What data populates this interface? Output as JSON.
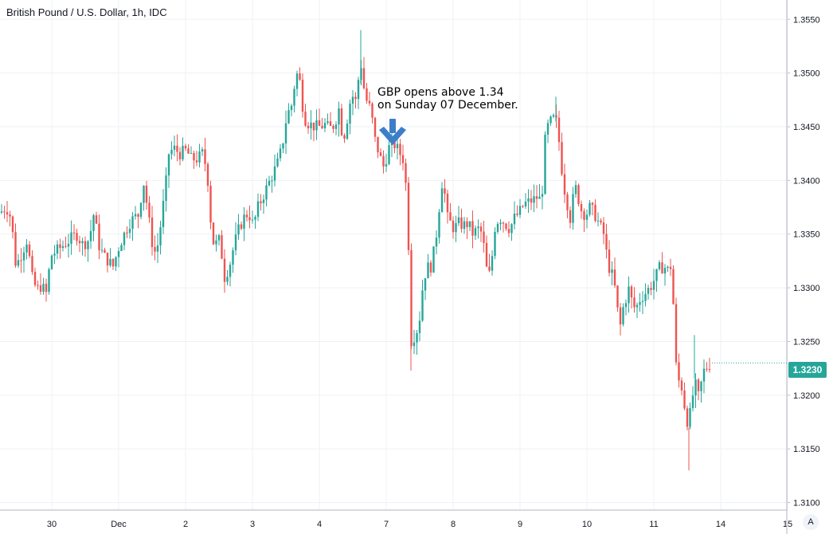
{
  "title": "British Pound / U.S. Dollar, 1h, IDC",
  "annotation": {
    "line1": "GBP opens above 1.34",
    "line2": "on Sunday 07 December.",
    "arrow_icon": "down-arrow-icon",
    "arrow_color": "#3d7ec8"
  },
  "last_price": {
    "label": "1.3230",
    "color": "#26a69a"
  },
  "auto_button": {
    "label": "A"
  },
  "colors": {
    "up": "#26a69a",
    "down": "#ef5350",
    "grid": "#eef1f5",
    "axis_text": "#131722",
    "axis_line": "#b2b5be"
  },
  "chart_data": {
    "type": "candlestick",
    "title": "British Pound / U.S. Dollar, 1h, IDC",
    "xlabel": "",
    "ylabel": "",
    "ylim": [
      1.3093,
      1.3568
    ],
    "grid": true,
    "yticks": [
      "1.3100",
      "1.3150",
      "1.3200",
      "1.3250",
      "1.3300",
      "1.3350",
      "1.3400",
      "1.3450",
      "1.3500",
      "1.3550"
    ],
    "xticks": [
      {
        "label": "30",
        "t": 65
      },
      {
        "label": "Dec",
        "t": 149
      },
      {
        "label": "2",
        "t": 233
      },
      {
        "label": "3",
        "t": 317
      },
      {
        "label": "4",
        "t": 401
      },
      {
        "label": "7",
        "t": 485
      },
      {
        "label": "8",
        "t": 569
      },
      {
        "label": "9",
        "t": 653
      },
      {
        "label": "10",
        "t": 737
      },
      {
        "label": "11",
        "t": 821
      },
      {
        "label": "14",
        "t": 905
      },
      {
        "label": "15",
        "t": 989
      }
    ],
    "price_path": [
      [
        0,
        1.337
      ],
      [
        8,
        1.3375
      ],
      [
        14,
        1.3365
      ],
      [
        20,
        1.332
      ],
      [
        26,
        1.333
      ],
      [
        34,
        1.3345
      ],
      [
        40,
        1.331
      ],
      [
        46,
        1.3298
      ],
      [
        52,
        1.3302
      ],
      [
        58,
        1.3295
      ],
      [
        64,
        1.333
      ],
      [
        72,
        1.3335
      ],
      [
        80,
        1.334
      ],
      [
        88,
        1.3345
      ],
      [
        96,
        1.335
      ],
      [
        104,
        1.334
      ],
      [
        112,
        1.3345
      ],
      [
        118,
        1.337
      ],
      [
        124,
        1.334
      ],
      [
        130,
        1.333
      ],
      [
        136,
        1.3325
      ],
      [
        142,
        1.332
      ],
      [
        150,
        1.334
      ],
      [
        156,
        1.335
      ],
      [
        162,
        1.336
      ],
      [
        168,
        1.3365
      ],
      [
        174,
        1.3368
      ],
      [
        180,
        1.34
      ],
      [
        186,
        1.337
      ],
      [
        190,
        1.3345
      ],
      [
        196,
        1.333
      ],
      [
        202,
        1.336
      ],
      [
        208,
        1.3395
      ],
      [
        212,
        1.3425
      ],
      [
        218,
        1.343
      ],
      [
        226,
        1.3425
      ],
      [
        234,
        1.3428
      ],
      [
        240,
        1.342
      ],
      [
        248,
        1.342
      ],
      [
        254,
        1.3425
      ],
      [
        258,
        1.3415
      ],
      [
        262,
        1.3395
      ],
      [
        266,
        1.3345
      ],
      [
        270,
        1.334
      ],
      [
        276,
        1.3345
      ],
      [
        282,
        1.331
      ],
      [
        288,
        1.332
      ],
      [
        294,
        1.334
      ],
      [
        300,
        1.3355
      ],
      [
        306,
        1.3365
      ],
      [
        312,
        1.337
      ],
      [
        318,
        1.3358
      ],
      [
        324,
        1.3375
      ],
      [
        330,
        1.3385
      ],
      [
        336,
        1.3395
      ],
      [
        342,
        1.3405
      ],
      [
        348,
        1.3415
      ],
      [
        354,
        1.343
      ],
      [
        360,
        1.346
      ],
      [
        366,
        1.347
      ],
      [
        372,
        1.35
      ],
      [
        376,
        1.3495
      ],
      [
        380,
        1.347
      ],
      [
        384,
        1.3455
      ],
      [
        390,
        1.3452
      ],
      [
        396,
        1.345
      ],
      [
        402,
        1.345
      ],
      [
        408,
        1.3452
      ],
      [
        414,
        1.3448
      ],
      [
        420,
        1.3452
      ],
      [
        426,
        1.3468
      ],
      [
        430,
        1.344
      ],
      [
        434,
        1.3445
      ],
      [
        438,
        1.347
      ],
      [
        444,
        1.348
      ],
      [
        448,
        1.347
      ],
      [
        452,
        1.3518
      ],
      [
        456,
        1.349
      ],
      [
        460,
        1.3475
      ],
      [
        466,
        1.3465
      ],
      [
        470,
        1.344
      ],
      [
        474,
        1.343
      ],
      [
        478,
        1.342
      ],
      [
        482,
        1.3412
      ],
      [
        488,
        1.343
      ],
      [
        494,
        1.3435
      ],
      [
        500,
        1.3428
      ],
      [
        506,
        1.342
      ],
      [
        512,
        1.338
      ],
      [
        514,
        1.33
      ],
      [
        516,
        1.325
      ],
      [
        520,
        1.3255
      ],
      [
        526,
        1.3265
      ],
      [
        532,
        1.331
      ],
      [
        538,
        1.332
      ],
      [
        542,
        1.332
      ],
      [
        546,
        1.334
      ],
      [
        550,
        1.336
      ],
      [
        554,
        1.34
      ],
      [
        558,
        1.339
      ],
      [
        562,
        1.3365
      ],
      [
        566,
        1.336
      ],
      [
        570,
        1.3355
      ],
      [
        576,
        1.336
      ],
      [
        582,
        1.3358
      ],
      [
        588,
        1.336
      ],
      [
        594,
        1.335
      ],
      [
        600,
        1.3355
      ],
      [
        606,
        1.335
      ],
      [
        610,
        1.332
      ],
      [
        614,
        1.331
      ],
      [
        618,
        1.333
      ],
      [
        622,
        1.336
      ],
      [
        628,
        1.3365
      ],
      [
        634,
        1.336
      ],
      [
        640,
        1.3355
      ],
      [
        646,
        1.3365
      ],
      [
        652,
        1.337
      ],
      [
        658,
        1.3378
      ],
      [
        664,
        1.338
      ],
      [
        670,
        1.3382
      ],
      [
        676,
        1.3385
      ],
      [
        680,
        1.3378
      ],
      [
        684,
        1.3435
      ],
      [
        688,
        1.345
      ],
      [
        692,
        1.3455
      ],
      [
        696,
        1.3458
      ],
      [
        700,
        1.3452
      ],
      [
        704,
        1.342
      ],
      [
        708,
        1.3395
      ],
      [
        712,
        1.338
      ],
      [
        716,
        1.3365
      ],
      [
        720,
        1.3385
      ],
      [
        724,
        1.3395
      ],
      [
        728,
        1.3375
      ],
      [
        732,
        1.337
      ],
      [
        736,
        1.3368
      ],
      [
        740,
        1.3375
      ],
      [
        746,
        1.337
      ],
      [
        752,
        1.336
      ],
      [
        758,
        1.335
      ],
      [
        762,
        1.333
      ],
      [
        766,
        1.3315
      ],
      [
        770,
        1.331
      ],
      [
        774,
        1.329
      ],
      [
        778,
        1.326
      ],
      [
        782,
        1.328
      ],
      [
        786,
        1.329
      ],
      [
        790,
        1.33
      ],
      [
        794,
        1.3285
      ],
      [
        798,
        1.328
      ],
      [
        804,
        1.329
      ],
      [
        810,
        1.3295
      ],
      [
        816,
        1.33
      ],
      [
        822,
        1.3308
      ],
      [
        828,
        1.3318
      ],
      [
        834,
        1.332
      ],
      [
        838,
        1.3316
      ],
      [
        842,
        1.332
      ],
      [
        846,
        1.328
      ],
      [
        850,
        1.321
      ],
      [
        854,
        1.3215
      ],
      [
        858,
        1.32
      ],
      [
        862,
        1.3175
      ],
      [
        866,
        1.318
      ],
      [
        870,
        1.32
      ],
      [
        874,
        1.321
      ],
      [
        878,
        1.3195
      ],
      [
        882,
        1.322
      ],
      [
        886,
        1.3225
      ],
      [
        890,
        1.3228
      ],
      [
        894,
        1.323
      ]
    ]
  }
}
